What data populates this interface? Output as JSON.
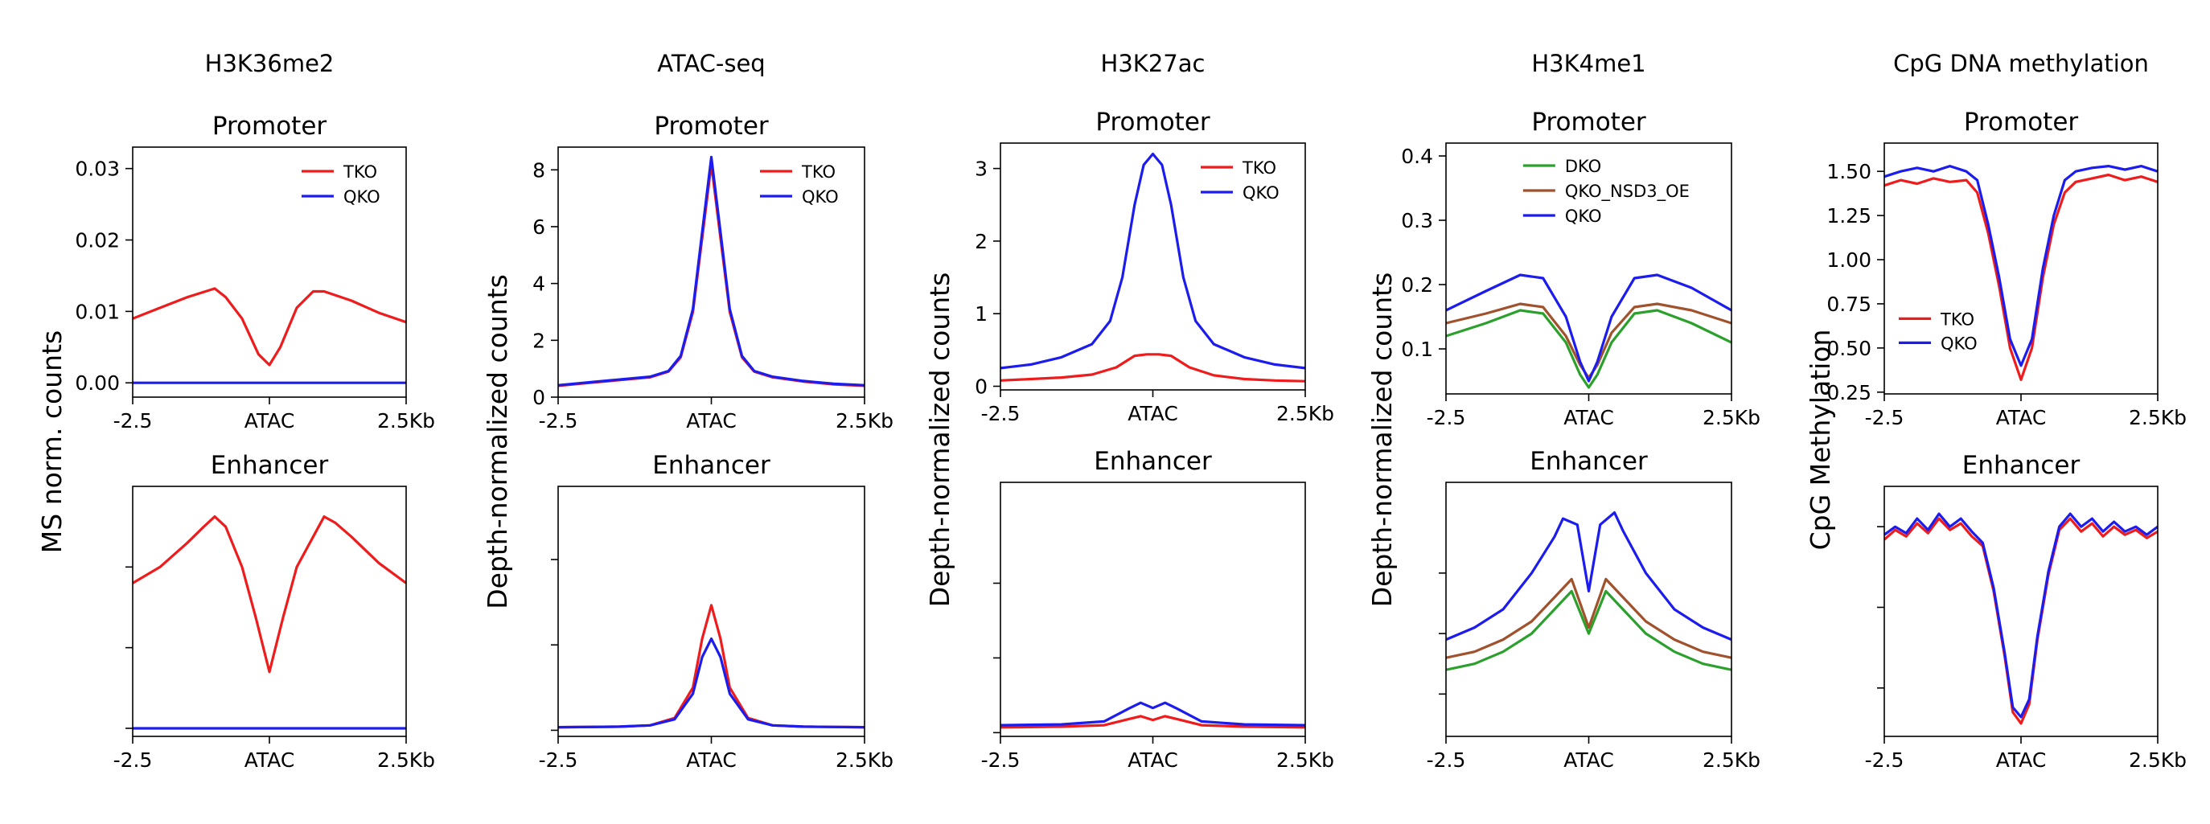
{
  "colors": {
    "TKO": "#ee1c1c",
    "QKO": "#1c1cee",
    "DKO": "#2ca02c",
    "QKO_NSD3_OE": "#a0522d"
  },
  "chart_data": [
    {
      "type": "line",
      "column_title": "H3K36me2",
      "title": "Promoter",
      "ylabel": "MS norm. counts",
      "xticks": [
        "-2.5",
        "ATAC",
        "2.5Kb"
      ],
      "xlim": [
        -2.5,
        2.5
      ],
      "ylim": [
        -0.002,
        0.033
      ],
      "yticks": [
        "0.00",
        "0.01",
        "0.02",
        "0.03"
      ],
      "ytick_values": [
        0,
        0.01,
        0.02,
        0.03
      ],
      "legend": "top-right",
      "series": [
        {
          "name": "TKO",
          "color": "#ee1c1c",
          "x": [
            -2.5,
            -2.0,
            -1.5,
            -1.0,
            -0.8,
            -0.5,
            -0.2,
            0,
            0.2,
            0.5,
            0.8,
            1.0,
            1.5,
            2.0,
            2.5
          ],
          "values": [
            0.009,
            0.0105,
            0.012,
            0.0132,
            0.012,
            0.009,
            0.004,
            0.0025,
            0.005,
            0.0105,
            0.0128,
            0.0128,
            0.0115,
            0.0098,
            0.0085
          ]
        },
        {
          "name": "QKO",
          "color": "#1c1cee",
          "x": [
            -2.5,
            2.5
          ],
          "values": [
            0.0,
            0.0
          ]
        }
      ]
    },
    {
      "type": "line",
      "column_title": "ATAC-seq",
      "title": "Promoter",
      "ylabel": "Depth-normalized counts",
      "xticks": [
        "-2.5",
        "ATAC",
        "2.5Kb"
      ],
      "xlim": [
        -2.5,
        2.5
      ],
      "ylim": [
        0,
        8.8
      ],
      "yticks": [
        "0",
        "2",
        "4",
        "6",
        "8"
      ],
      "ytick_values": [
        0,
        2,
        4,
        6,
        8
      ],
      "legend": "top-right",
      "series": [
        {
          "name": "TKO",
          "color": "#ee1c1c",
          "x": [
            -2.5,
            -2.0,
            -1.5,
            -1.0,
            -0.7,
            -0.5,
            -0.3,
            -0.15,
            0,
            0.15,
            0.3,
            0.5,
            0.7,
            1.0,
            1.5,
            2.0,
            2.5
          ],
          "values": [
            0.4,
            0.5,
            0.6,
            0.7,
            0.9,
            1.4,
            3.0,
            5.6,
            8.2,
            5.6,
            3.0,
            1.4,
            0.9,
            0.7,
            0.55,
            0.45,
            0.4
          ]
        },
        {
          "name": "QKO",
          "color": "#1c1cee",
          "x": [
            -2.5,
            -2.0,
            -1.5,
            -1.0,
            -0.7,
            -0.5,
            -0.3,
            -0.15,
            0,
            0.15,
            0.3,
            0.5,
            0.7,
            1.0,
            1.5,
            2.0,
            2.5
          ],
          "values": [
            0.42,
            0.52,
            0.62,
            0.72,
            0.92,
            1.45,
            3.1,
            5.8,
            8.45,
            5.8,
            3.1,
            1.45,
            0.92,
            0.72,
            0.57,
            0.47,
            0.42
          ]
        }
      ]
    },
    {
      "type": "line",
      "column_title": "H3K27ac",
      "title": "Promoter",
      "ylabel": "Depth-normalized counts",
      "xticks": [
        "-2.5",
        "ATAC",
        "2.5Kb"
      ],
      "xlim": [
        -2.5,
        2.5
      ],
      "ylim": [
        -0.05,
        3.35
      ],
      "yticks": [
        "0",
        "1",
        "2",
        "3"
      ],
      "ytick_values": [
        0,
        1,
        2,
        3
      ],
      "legend": "top-right",
      "series": [
        {
          "name": "TKO",
          "color": "#ee1c1c",
          "x": [
            -2.5,
            -2.0,
            -1.5,
            -1.0,
            -0.6,
            -0.3,
            -0.1,
            0.1,
            0.3,
            0.6,
            1.0,
            1.5,
            2.0,
            2.5
          ],
          "values": [
            0.08,
            0.1,
            0.12,
            0.16,
            0.26,
            0.42,
            0.44,
            0.44,
            0.42,
            0.26,
            0.15,
            0.1,
            0.08,
            0.07
          ]
        },
        {
          "name": "QKO",
          "color": "#1c1cee",
          "x": [
            -2.5,
            -2.0,
            -1.5,
            -1.0,
            -0.7,
            -0.5,
            -0.3,
            -0.15,
            0,
            0.15,
            0.3,
            0.5,
            0.7,
            1.0,
            1.5,
            2.0,
            2.5
          ],
          "values": [
            0.25,
            0.3,
            0.4,
            0.58,
            0.9,
            1.5,
            2.5,
            3.05,
            3.2,
            3.05,
            2.5,
            1.5,
            0.9,
            0.58,
            0.4,
            0.3,
            0.25
          ]
        }
      ]
    },
    {
      "type": "line",
      "column_title": "H3K4me1",
      "title": "Promoter",
      "ylabel": "Depth-normalized counts",
      "xticks": [
        "-2.5",
        "ATAC",
        "2.5Kb"
      ],
      "xlim": [
        -2.5,
        2.5
      ],
      "ylim": [
        0.03,
        0.42
      ],
      "yticks": [
        "0.1",
        "0.2",
        "0.3",
        "0.4"
      ],
      "ytick_values": [
        0.1,
        0.2,
        0.3,
        0.4
      ],
      "legend": "top-center",
      "series": [
        {
          "name": "DKO",
          "color": "#2ca02c",
          "x": [
            -2.5,
            -1.8,
            -1.2,
            -0.8,
            -0.4,
            -0.15,
            0,
            0.15,
            0.4,
            0.8,
            1.2,
            1.8,
            2.5
          ],
          "values": [
            0.12,
            0.14,
            0.16,
            0.155,
            0.11,
            0.06,
            0.04,
            0.06,
            0.11,
            0.155,
            0.16,
            0.14,
            0.11
          ]
        },
        {
          "name": "QKO_NSD3_OE",
          "color": "#a0522d",
          "x": [
            -2.5,
            -1.8,
            -1.2,
            -0.8,
            -0.4,
            -0.15,
            0,
            0.15,
            0.4,
            0.8,
            1.2,
            1.8,
            2.5
          ],
          "values": [
            0.14,
            0.155,
            0.17,
            0.165,
            0.12,
            0.075,
            0.055,
            0.075,
            0.125,
            0.165,
            0.17,
            0.16,
            0.14
          ]
        },
        {
          "name": "QKO",
          "color": "#1c1cee",
          "x": [
            -2.5,
            -1.8,
            -1.2,
            -0.8,
            -0.4,
            -0.15,
            0,
            0.15,
            0.4,
            0.8,
            1.2,
            1.8,
            2.5
          ],
          "values": [
            0.16,
            0.19,
            0.215,
            0.21,
            0.15,
            0.08,
            0.05,
            0.08,
            0.15,
            0.21,
            0.215,
            0.195,
            0.16
          ]
        }
      ]
    },
    {
      "type": "line",
      "column_title": "CpG DNA methylation",
      "title": "Promoter",
      "ylabel": "CpG Methylation",
      "xticks": [
        "-2.5",
        "ATAC",
        "2.5Kb"
      ],
      "xlim": [
        -2.5,
        2.5
      ],
      "ylim": [
        0.24,
        1.66
      ],
      "yticks": [
        "0.25",
        "0.50",
        "0.75",
        "1.00",
        "1.25",
        "1.50"
      ],
      "ytick_values": [
        0.25,
        0.5,
        0.75,
        1.0,
        1.25,
        1.5
      ],
      "legend": "center-left",
      "series": [
        {
          "name": "TKO",
          "color": "#ee1c1c",
          "x": [
            -2.5,
            -2.2,
            -1.9,
            -1.6,
            -1.3,
            -1.0,
            -0.8,
            -0.6,
            -0.4,
            -0.2,
            0,
            0.2,
            0.4,
            0.6,
            0.8,
            1.0,
            1.3,
            1.6,
            1.9,
            2.2,
            2.5
          ],
          "values": [
            1.42,
            1.45,
            1.43,
            1.46,
            1.44,
            1.45,
            1.38,
            1.15,
            0.85,
            0.5,
            0.32,
            0.5,
            0.9,
            1.2,
            1.38,
            1.44,
            1.46,
            1.48,
            1.45,
            1.47,
            1.44
          ]
        },
        {
          "name": "QKO",
          "color": "#1c1cee",
          "x": [
            -2.5,
            -2.2,
            -1.9,
            -1.6,
            -1.3,
            -1.0,
            -0.8,
            -0.6,
            -0.4,
            -0.2,
            0,
            0.2,
            0.4,
            0.6,
            0.8,
            1.0,
            1.3,
            1.6,
            1.9,
            2.2,
            2.5
          ],
          "values": [
            1.47,
            1.5,
            1.52,
            1.5,
            1.53,
            1.5,
            1.45,
            1.2,
            0.9,
            0.55,
            0.4,
            0.55,
            0.95,
            1.25,
            1.45,
            1.5,
            1.52,
            1.53,
            1.51,
            1.53,
            1.5
          ]
        }
      ]
    },
    {
      "type": "line",
      "title": "Enhancer",
      "xticks": [
        "-2.5",
        "ATAC",
        "2.5Kb"
      ],
      "xlim": [
        -2.5,
        2.5
      ],
      "ylim": [
        -0.04,
        1.2
      ],
      "ytick_values": [
        0,
        0.4,
        0.8
      ],
      "yticks": [
        "",
        "",
        ""
      ],
      "series": [
        {
          "name": "TKO",
          "color": "#ee1c1c",
          "x": [
            -2.5,
            -2.0,
            -1.5,
            -1.2,
            -1.0,
            -0.8,
            -0.5,
            -0.25,
            0,
            0.25,
            0.5,
            0.8,
            1.0,
            1.2,
            1.5,
            2.0,
            2.5
          ],
          "values": [
            0.72,
            0.8,
            0.92,
            1.0,
            1.05,
            1.0,
            0.8,
            0.55,
            0.28,
            0.55,
            0.8,
            0.95,
            1.05,
            1.02,
            0.95,
            0.82,
            0.72
          ]
        },
        {
          "name": "QKO",
          "color": "#1c1cee",
          "x": [
            -2.5,
            2.5
          ],
          "values": [
            0.0,
            0.0
          ]
        }
      ]
    },
    {
      "type": "line",
      "title": "Enhancer",
      "xticks": [
        "-2.5",
        "ATAC",
        "2.5Kb"
      ],
      "xlim": [
        -2.5,
        2.5
      ],
      "ylim": [
        -0.1,
        4.0
      ],
      "ytick_values": [
        0,
        1.4,
        2.8
      ],
      "yticks": [
        "",
        "",
        ""
      ],
      "series": [
        {
          "name": "TKO",
          "color": "#ee1c1c",
          "x": [
            -2.5,
            -1.5,
            -1.0,
            -0.6,
            -0.3,
            -0.15,
            0,
            0.15,
            0.3,
            0.6,
            1.0,
            1.5,
            2.5
          ],
          "values": [
            0.05,
            0.06,
            0.08,
            0.2,
            0.7,
            1.5,
            2.05,
            1.5,
            0.7,
            0.2,
            0.08,
            0.06,
            0.05
          ]
        },
        {
          "name": "QKO",
          "color": "#1c1cee",
          "x": [
            -2.5,
            -1.5,
            -1.0,
            -0.6,
            -0.3,
            -0.15,
            0,
            0.15,
            0.3,
            0.6,
            1.0,
            1.5,
            2.5
          ],
          "values": [
            0.05,
            0.06,
            0.08,
            0.18,
            0.6,
            1.2,
            1.5,
            1.2,
            0.6,
            0.18,
            0.08,
            0.06,
            0.05
          ]
        }
      ]
    },
    {
      "type": "line",
      "title": "Enhancer",
      "xticks": [
        "-2.5",
        "ATAC",
        "2.5Kb"
      ],
      "xlim": [
        -2.5,
        2.5
      ],
      "ylim": [
        -0.05,
        3.35
      ],
      "ytick_values": [
        0,
        1,
        2
      ],
      "yticks": [
        "",
        "",
        ""
      ],
      "series": [
        {
          "name": "TKO",
          "color": "#ee1c1c",
          "x": [
            -2.5,
            -1.5,
            -0.8,
            -0.4,
            -0.2,
            0,
            0.2,
            0.4,
            0.8,
            1.5,
            2.5
          ],
          "values": [
            0.07,
            0.08,
            0.1,
            0.18,
            0.22,
            0.17,
            0.22,
            0.18,
            0.1,
            0.08,
            0.07
          ]
        },
        {
          "name": "QKO",
          "color": "#1c1cee",
          "x": [
            -2.5,
            -1.5,
            -0.8,
            -0.4,
            -0.2,
            0,
            0.2,
            0.4,
            0.8,
            1.5,
            2.5
          ],
          "values": [
            0.1,
            0.11,
            0.15,
            0.32,
            0.4,
            0.33,
            0.4,
            0.32,
            0.15,
            0.11,
            0.1
          ]
        }
      ]
    },
    {
      "type": "line",
      "title": "Enhancer",
      "xticks": [
        "-2.5",
        "ATAC",
        "2.5Kb"
      ],
      "xlim": [
        -2.5,
        2.5
      ],
      "ylim": [
        0.03,
        0.45
      ],
      "ytick_values": [
        0.1,
        0.2,
        0.3
      ],
      "yticks": [
        "",
        "",
        ""
      ],
      "series": [
        {
          "name": "DKO",
          "color": "#2ca02c",
          "x": [
            -2.5,
            -2.0,
            -1.5,
            -1.0,
            -0.6,
            -0.3,
            0,
            0.3,
            0.6,
            1.0,
            1.5,
            2.0,
            2.5
          ],
          "values": [
            0.14,
            0.15,
            0.17,
            0.2,
            0.24,
            0.27,
            0.2,
            0.27,
            0.24,
            0.2,
            0.17,
            0.15,
            0.14
          ]
        },
        {
          "name": "QKO_NSD3_OE",
          "color": "#a0522d",
          "x": [
            -2.5,
            -2.0,
            -1.5,
            -1.0,
            -0.6,
            -0.3,
            0,
            0.3,
            0.6,
            1.0,
            1.5,
            2.0,
            2.5
          ],
          "values": [
            0.16,
            0.17,
            0.19,
            0.22,
            0.26,
            0.29,
            0.21,
            0.29,
            0.26,
            0.22,
            0.19,
            0.17,
            0.16
          ]
        },
        {
          "name": "QKO",
          "color": "#1c1cee",
          "x": [
            -2.5,
            -2.0,
            -1.5,
            -1.0,
            -0.6,
            -0.45,
            -0.2,
            0,
            0.2,
            0.45,
            0.6,
            1.0,
            1.5,
            2.0,
            2.5
          ],
          "values": [
            0.19,
            0.21,
            0.24,
            0.3,
            0.36,
            0.39,
            0.38,
            0.27,
            0.38,
            0.4,
            0.37,
            0.3,
            0.24,
            0.21,
            0.19
          ]
        }
      ]
    },
    {
      "type": "line",
      "title": "Enhancer",
      "xticks": [
        "-2.5",
        "ATAC",
        "2.5Kb"
      ],
      "xlim": [
        -2.5,
        2.5
      ],
      "ylim": [
        0.2,
        1.75
      ],
      "ytick_values": [
        0.5,
        1.0,
        1.5
      ],
      "yticks": [
        "",
        "",
        ""
      ],
      "series": [
        {
          "name": "TKO",
          "color": "#ee1c1c",
          "x": [
            -2.5,
            -2.3,
            -2.1,
            -1.9,
            -1.7,
            -1.5,
            -1.3,
            -1.1,
            -0.9,
            -0.7,
            -0.5,
            -0.3,
            -0.15,
            0,
            0.15,
            0.3,
            0.5,
            0.7,
            0.9,
            1.1,
            1.3,
            1.5,
            1.7,
            1.9,
            2.1,
            2.3,
            2.5
          ],
          "values": [
            1.42,
            1.48,
            1.44,
            1.52,
            1.46,
            1.55,
            1.48,
            1.52,
            1.44,
            1.38,
            1.1,
            0.7,
            0.35,
            0.28,
            0.4,
            0.8,
            1.2,
            1.48,
            1.55,
            1.47,
            1.52,
            1.44,
            1.5,
            1.45,
            1.48,
            1.43,
            1.47
          ]
        },
        {
          "name": "QKO",
          "color": "#1c1cee",
          "x": [
            -2.5,
            -2.3,
            -2.1,
            -1.9,
            -1.7,
            -1.5,
            -1.3,
            -1.1,
            -0.9,
            -0.7,
            -0.5,
            -0.3,
            -0.15,
            0,
            0.15,
            0.3,
            0.5,
            0.7,
            0.9,
            1.1,
            1.3,
            1.5,
            1.7,
            1.9,
            2.1,
            2.3,
            2.5
          ],
          "values": [
            1.45,
            1.5,
            1.46,
            1.55,
            1.48,
            1.58,
            1.5,
            1.55,
            1.47,
            1.4,
            1.12,
            0.72,
            0.38,
            0.32,
            0.43,
            0.82,
            1.22,
            1.5,
            1.58,
            1.5,
            1.55,
            1.47,
            1.53,
            1.47,
            1.5,
            1.45,
            1.5
          ]
        }
      ]
    }
  ]
}
